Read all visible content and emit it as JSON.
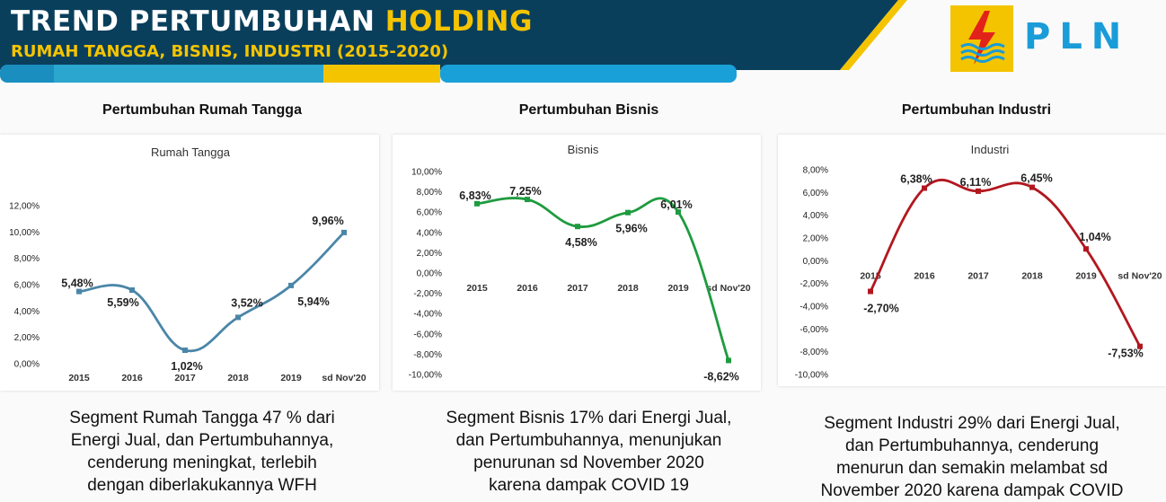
{
  "header": {
    "title_part1": "TREND PERTUMBUHAN ",
    "title_highlight": "HOLDING",
    "subtitle": "RUMAH TANGGA, BISNIS, INDUSTRI (2015-2020)",
    "logo_icon": "pln-lightning-logo-icon",
    "logo_text": "PLN"
  },
  "colors": {
    "header_bg": "#0a3f5c",
    "accent_yellow": "#f5c400",
    "rumah_tangga_line": "#4a86a8",
    "bisnis_line": "#1e9b3f",
    "industri_line": "#b2171f"
  },
  "sections": [
    {
      "heading": "Pertumbuhan Rumah Tangga",
      "description_lines": [
        "Segment Rumah Tangga 47 % dari",
        "Energi Jual, dan Pertumbuhannya,",
        "cenderung meningkat, terlebih",
        "dengan diberlakukannya WFH"
      ]
    },
    {
      "heading": "Pertumbuhan Bisnis",
      "description_lines": [
        "Segment Bisnis 17% dari Energi Jual,",
        "dan Pertumbuhannya, menunjukan",
        "penurunan sd November  2020",
        "karena dampak COVID 19"
      ]
    },
    {
      "heading": "Pertumbuhan Industri",
      "description_lines": [
        "Segment Industri 29% dari Energi Jual,",
        "dan Pertumbuhannya, cenderung",
        "menurun dan semakin melambat sd",
        "November 2020 karena dampak COVID"
      ]
    }
  ],
  "chart_data": [
    {
      "type": "line",
      "title": "Rumah Tangga",
      "categories": [
        "2015",
        "2016",
        "2017",
        "2018",
        "2019",
        "sd Nov'20"
      ],
      "series": [
        {
          "values": [
            5.48,
            5.59,
            1.02,
            3.52,
            5.94,
            9.96
          ]
        }
      ],
      "data_labels": [
        "5,48%",
        "5,59%",
        "1,02%",
        "3,52%",
        "5,94%",
        "9,96%"
      ],
      "ylim": [
        0,
        12
      ],
      "yticks": [
        "0,00%",
        "2,00%",
        "4,00%",
        "6,00%",
        "8,00%",
        "10,00%",
        "12,00%"
      ],
      "grid": false,
      "legend": "none"
    },
    {
      "type": "line",
      "title": "Bisnis",
      "categories": [
        "2015",
        "2016",
        "2017",
        "2018",
        "2019",
        "sd Nov'20"
      ],
      "series": [
        {
          "values": [
            6.83,
            7.25,
            4.58,
            5.96,
            6.01,
            -8.62
          ]
        }
      ],
      "data_labels": [
        "6,83%",
        "7,25%",
        "4,58%",
        "5,96%",
        "6,01%",
        "-8,62%"
      ],
      "ylim": [
        -10,
        10
      ],
      "yticks": [
        "-10,00%",
        "-8,00%",
        "-6,00%",
        "-4,00%",
        "-2,00%",
        "0,00%",
        "2,00%",
        "4,00%",
        "6,00%",
        "8,00%",
        "10,00%"
      ],
      "grid": false,
      "legend": "none"
    },
    {
      "type": "line",
      "title": "Industri",
      "categories": [
        "2015",
        "2016",
        "2017",
        "2018",
        "2019",
        "sd Nov'20"
      ],
      "series": [
        {
          "values": [
            -2.7,
            6.38,
            6.11,
            6.45,
            1.04,
            -7.53
          ]
        }
      ],
      "data_labels": [
        "-2,70%",
        "6,38%",
        "6,11%",
        "6,45%",
        "1,04%",
        "-7,53%"
      ],
      "ylim": [
        -10,
        8
      ],
      "yticks": [
        "-10,00%",
        "-8,00%",
        "-6,00%",
        "-4,00%",
        "-2,00%",
        "0,00%",
        "2,00%",
        "4,00%",
        "6,00%",
        "8,00%"
      ],
      "grid": false,
      "legend": "none"
    }
  ]
}
